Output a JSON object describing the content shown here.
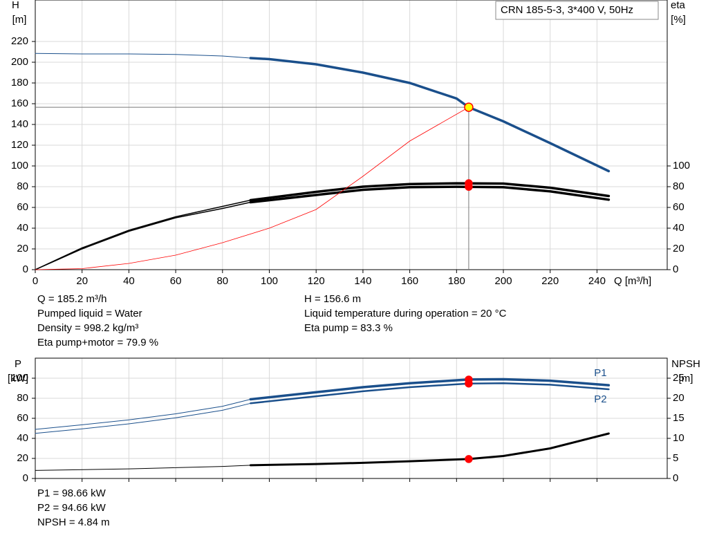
{
  "chart_data": [
    {
      "type": "line",
      "title": "CRN 185-5-3, 3*400 V, 50Hz",
      "y_label": "H",
      "y_unit": "[m]",
      "y2_label": "eta",
      "y2_unit": "[%]",
      "x_label": "Q [m³/h]",
      "xlim": [
        0,
        270
      ],
      "xticks": [
        0,
        20,
        40,
        60,
        80,
        100,
        120,
        140,
        160,
        180,
        200,
        220,
        240
      ],
      "show_xtick_labels": true,
      "ylim": [
        0,
        260
      ],
      "yticks": [
        0,
        20,
        40,
        60,
        80,
        100,
        120,
        140,
        160,
        180,
        200,
        220
      ],
      "y2lim": [
        0,
        260
      ],
      "y2ticks": [
        0,
        20,
        40,
        60,
        80,
        100
      ],
      "grid": true,
      "series": [
        {
          "x": [
            0,
            20,
            40,
            60,
            80,
            92
          ],
          "values": [
            208.5,
            208,
            208,
            207.5,
            206,
            204
          ],
          "color": "#1a4f8b",
          "width": 1
        },
        {
          "x": [
            92,
            100,
            120,
            140,
            160,
            180,
            185.2,
            200,
            220,
            245
          ],
          "values": [
            204,
            203,
            198,
            190,
            180,
            165,
            156.6,
            143,
            122,
            95
          ],
          "color": "#1a4f8b",
          "width": 3.5
        },
        {
          "x": [
            0,
            20,
            40,
            60,
            80,
            92
          ],
          "values": [
            0,
            21,
            38,
            51,
            61,
            67
          ],
          "color": "#000000",
          "width": 1.5,
          "axis": "y2"
        },
        {
          "x": [
            92,
            120,
            140,
            160,
            180,
            200,
            220,
            245
          ],
          "values": [
            67,
            75,
            80,
            82.5,
            83.3,
            83,
            79,
            71
          ],
          "color": "#000000",
          "width": 3.5,
          "axis": "y2"
        },
        {
          "x": [
            0,
            20,
            40,
            60,
            80,
            92
          ],
          "values": [
            0,
            20,
            37,
            50,
            59,
            65
          ],
          "color": "#000000",
          "width": 1.5,
          "axis": "y2"
        },
        {
          "x": [
            92,
            120,
            140,
            160,
            180,
            200,
            220,
            245
          ],
          "values": [
            65,
            72,
            77,
            79.5,
            79.9,
            79.5,
            75.5,
            67.5
          ],
          "color": "#000000",
          "width": 3.5,
          "axis": "y2"
        },
        {
          "x": [
            0,
            20,
            40,
            60,
            80,
            100,
            120,
            140,
            160,
            185.2
          ],
          "values": [
            0,
            1,
            6,
            14,
            26,
            40,
            58,
            90,
            124,
            156.6
          ],
          "color": "#ff0000",
          "width": 0.8
        }
      ],
      "markers": [
        {
          "x": 185.2,
          "value": 156.6,
          "color": "#ffff00",
          "crosshair": true
        },
        {
          "x": 185.2,
          "value": 83.3,
          "color": "#ff0000",
          "axis": "y2"
        },
        {
          "x": 185.2,
          "value": 79.9,
          "color": "#ff0000",
          "axis": "y2"
        }
      ],
      "info_left": [
        "Q = 185.2 m³/h",
        "Pumped liquid = Water",
        "Density = 998.2 kg/m³",
        "Eta pump+motor = 79.9 %"
      ],
      "info_right": [
        "H = 156.6 m",
        "Liquid temperature during operation = 20 °C",
        "Eta pump = 83.3 %"
      ]
    },
    {
      "type": "line",
      "y_label": "P",
      "y_unit": "[kW]",
      "y2_label": "NPSH",
      "y2_unit": "[m]",
      "xlim": [
        0,
        270
      ],
      "xticks": [
        0,
        20,
        40,
        60,
        80,
        100,
        120,
        140,
        160,
        180,
        200,
        220,
        240
      ],
      "show_xtick_labels": false,
      "ylim": [
        0,
        120
      ],
      "yticks": [
        0,
        20,
        40,
        60,
        80,
        100
      ],
      "y2lim": [
        0,
        30
      ],
      "y2ticks": [
        0,
        5,
        10,
        15,
        20,
        25
      ],
      "grid": true,
      "series": [
        {
          "x": [
            0,
            20,
            40,
            60,
            80,
            92
          ],
          "values": [
            49,
            53.5,
            58.5,
            64.5,
            72,
            79
          ],
          "color": "#1a4f8b",
          "width": 1
        },
        {
          "name": "P1",
          "label_position": "above",
          "x": [
            92,
            120,
            140,
            160,
            185.2,
            200,
            220,
            245
          ],
          "values": [
            79,
            86,
            91,
            95,
            98.66,
            99,
            97.5,
            93
          ],
          "color": "#1a4f8b",
          "width": 3.5
        },
        {
          "x": [
            0,
            20,
            40,
            60,
            80,
            92
          ],
          "values": [
            45,
            49.5,
            54.5,
            60.5,
            68,
            75
          ],
          "color": "#1a4f8b",
          "width": 1
        },
        {
          "name": "P2",
          "label_position": "below",
          "x": [
            92,
            120,
            140,
            160,
            185.2,
            200,
            220,
            245
          ],
          "values": [
            75,
            82,
            87,
            91,
            94.66,
            95,
            93.5,
            89
          ],
          "color": "#1a4f8b",
          "width": 2.5
        },
        {
          "x": [
            0,
            40,
            80,
            92
          ],
          "values": [
            2,
            2.4,
            3,
            3.3
          ],
          "color": "#000000",
          "width": 1,
          "axis": "y2"
        },
        {
          "x": [
            92,
            120,
            140,
            160,
            185.2,
            200,
            220,
            245
          ],
          "values": [
            3.3,
            3.6,
            3.9,
            4.3,
            4.84,
            5.6,
            7.5,
            11.2
          ],
          "color": "#000000",
          "width": 3,
          "axis": "y2"
        }
      ],
      "markers": [
        {
          "x": 185.2,
          "value": 98.66,
          "color": "#ff0000"
        },
        {
          "x": 185.2,
          "value": 94.66,
          "color": "#ff0000"
        },
        {
          "x": 185.2,
          "value": 4.84,
          "color": "#ff0000",
          "axis": "y2"
        }
      ],
      "info_left": [
        "P1 = 98.66 kW",
        "P2 = 94.66 kW",
        "NPSH = 4.84 m"
      ]
    }
  ]
}
